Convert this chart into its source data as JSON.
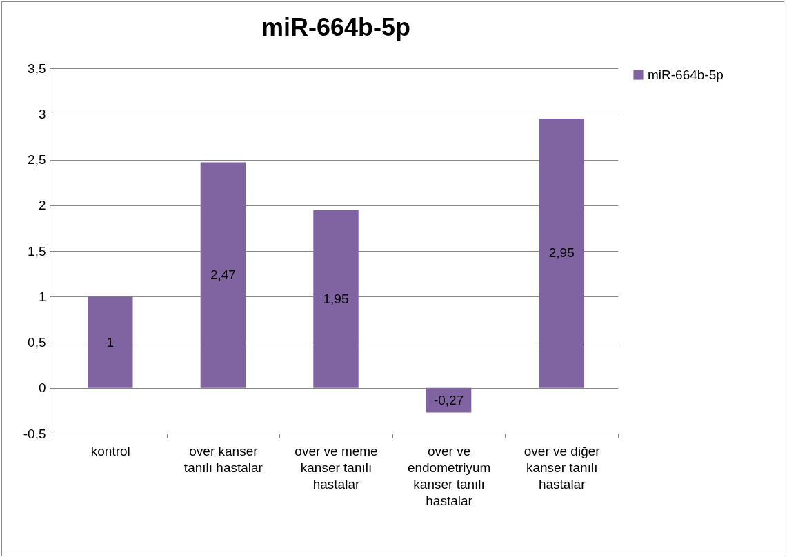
{
  "chart_data": {
    "type": "bar",
    "title": "miR-664b-5p",
    "categories": [
      "kontrol",
      "over kanser tanılı hastalar",
      "over ve meme kanser tanılı hastalar",
      "over ve endometriyum kanser tanılı hastalar",
      "over ve diğer kanser tanılı hastalar"
    ],
    "series": [
      {
        "name": "miR-664b-5p",
        "color": "#8064a2",
        "values": [
          1,
          2.47,
          1.95,
          -0.27,
          2.95
        ],
        "value_labels": [
          "1",
          "2,47",
          "1,95",
          "-0,27",
          "2,95"
        ]
      }
    ],
    "ylim": [
      -0.5,
      3.5
    ],
    "yticks": [
      {
        "value": -0.5,
        "label": "-0,5"
      },
      0,
      {
        "value": 0.5,
        "label": "0,5"
      },
      1,
      {
        "value": 1.5,
        "label": "1,5"
      },
      2,
      {
        "value": 2.5,
        "label": "2,5"
      },
      3,
      {
        "value": 3.5,
        "label": "3,5"
      }
    ],
    "grid": "y",
    "legend": "right"
  }
}
